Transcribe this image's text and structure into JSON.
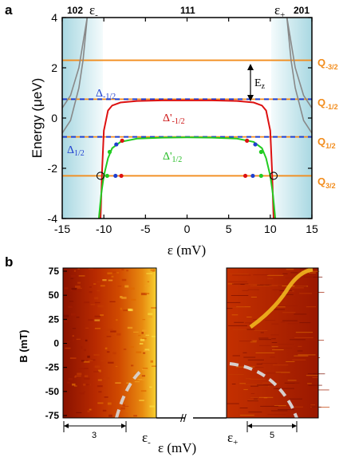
{
  "panel_a": {
    "label": "a",
    "region_labels": [
      "102",
      "111",
      "201"
    ],
    "eps_minus": "ε",
    "eps_minus_sub": "-",
    "eps_plus": "ε",
    "eps_plus_sub": "+",
    "y_axis_label": "Energy (μeV)",
    "x_axis_label": "ε (mV)",
    "x_ticks": [
      "-15",
      "-10",
      "-5",
      "0",
      "5",
      "10",
      "15"
    ],
    "y_ticks": [
      "4",
      "2",
      "0",
      "-2",
      "-4"
    ],
    "ez_label": "E",
    "ez_sub": "z",
    "delta_labels": [
      {
        "main": "Δ",
        "sub": "-1/2"
      },
      {
        "main": "Δ",
        "sub": "1/2"
      },
      {
        "main": "Δ'",
        "sub": "-1/2"
      },
      {
        "main": "Δ'",
        "sub": "1/2"
      }
    ],
    "q_labels": [
      {
        "main": "Q",
        "sub": "-3/2"
      },
      {
        "main": "Q",
        "sub": "-1/2"
      },
      {
        "main": "Q",
        "sub": "1/2"
      },
      {
        "main": "Q",
        "sub": "3/2"
      }
    ],
    "colors": {
      "orange": "#f28c1c",
      "blue": "#1f3fd0",
      "red": "#dd1111",
      "green": "#22cc22",
      "gray": "#888888",
      "shade": "#bfe3ea"
    }
  },
  "panel_b": {
    "label": "b",
    "y_axis_label": "B (mT)",
    "y_ticks": [
      "75",
      "50",
      "25",
      "0",
      "-25",
      "-50",
      "-75"
    ],
    "scale_left": "3",
    "scale_right": "5",
    "eps_minus": "ε",
    "eps_minus_sub": "-",
    "eps_plus": "ε",
    "eps_plus_sub": "+",
    "x_axis_label": "ε (mV)",
    "break_mark": "//"
  },
  "chart_data": {
    "type": "line",
    "xlabel": "ε (mV)",
    "ylabel": "Energy (μeV)",
    "xlim": [
      -15,
      15
    ],
    "ylim": [
      -4,
      4
    ],
    "x_ticks": [
      -15,
      -10,
      -5,
      0,
      5,
      10,
      15
    ],
    "y_ticks": [
      -4,
      -2,
      0,
      2,
      4
    ],
    "series": [
      {
        "name": "Q-3/2",
        "type": "hline",
        "y": 2.3
      },
      {
        "name": "Q-1/2",
        "type": "hline",
        "y": 0.75
      },
      {
        "name": "Q1/2",
        "type": "hline",
        "y": -0.75
      },
      {
        "name": "Q3/2",
        "type": "hline",
        "y": -2.3
      },
      {
        "name": "Δ-1/2",
        "type": "hline",
        "y": 0.75
      },
      {
        "name": "Δ1/2",
        "type": "hline",
        "y": -0.75
      },
      {
        "name": "Δ'-1/2",
        "x": [
          -10.4,
          -10.2,
          -10.0,
          -9.5,
          -9.0,
          -8.0,
          -6.0,
          -3.0,
          0.0,
          3.0,
          6.0,
          8.0,
          9.0,
          9.5,
          10.0,
          10.2,
          10.4
        ],
        "y": [
          -4.0,
          -2.0,
          -0.5,
          0.3,
          0.5,
          0.62,
          0.68,
          0.7,
          0.7,
          0.7,
          0.68,
          0.62,
          0.5,
          0.3,
          -0.5,
          -2.0,
          -4.0
        ]
      },
      {
        "name": "Δ'1/2",
        "x": [
          -10.6,
          -10.3,
          -10.0,
          -9.5,
          -9.0,
          -8.0,
          -6.0,
          -3.0,
          0.0,
          3.0,
          6.0,
          8.0,
          9.0,
          9.5,
          10.0,
          10.3,
          10.6
        ],
        "y": [
          -4.0,
          -3.0,
          -2.3,
          -1.6,
          -1.2,
          -0.95,
          -0.82,
          -0.78,
          -0.77,
          -0.78,
          -0.82,
          -0.95,
          -1.2,
          -1.6,
          -2.3,
          -3.0,
          -4.0
        ]
      },
      {
        "name": "gray-left-outer",
        "x": [
          -15.0,
          -14.0,
          -13.0,
          -12.5,
          -12.0
        ],
        "y": [
          0.4,
          0.9,
          2.0,
          3.0,
          4.0
        ]
      },
      {
        "name": "gray-left-inner",
        "x": [
          -15.0,
          -14.0,
          -13.0,
          -12.5,
          -12.2,
          -12.0
        ],
        "y": [
          -0.6,
          -0.1,
          1.2,
          2.3,
          3.3,
          4.0
        ]
      },
      {
        "name": "gray-right-outer",
        "x": [
          12.0,
          12.5,
          13.0,
          14.0,
          15.0
        ],
        "y": [
          4.0,
          3.0,
          2.0,
          0.9,
          0.4
        ]
      },
      {
        "name": "gray-right-inner",
        "x": [
          12.0,
          12.2,
          12.5,
          13.0,
          14.0,
          15.0
        ],
        "y": [
          4.0,
          3.3,
          2.3,
          1.2,
          -0.1,
          -0.6
        ]
      }
    ]
  }
}
